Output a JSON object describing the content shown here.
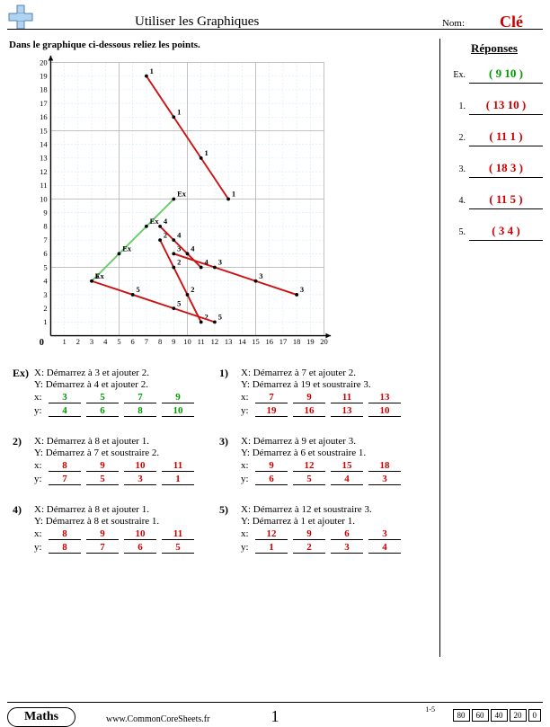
{
  "header": {
    "title": "Utiliser les Graphiques",
    "name_label": "Nom:",
    "key": "Clé"
  },
  "instruction": "Dans le graphique ci-dessous reliez les points.",
  "chart": {
    "type": "line",
    "xlim": [
      0,
      20
    ],
    "ylim": [
      0,
      20
    ],
    "xtick_step": 1,
    "ytick_step": 1,
    "xtick_label_step": 1,
    "ytick_label_step": 1,
    "grid_minor_color": "#cfe6f5",
    "grid_major_color": "#b0b0b0",
    "grid_major_step": 5,
    "axis_color": "#000000",
    "background": "#ffffff",
    "label_fontsize": 9,
    "point_label_fontsize": 9,
    "line_width": 2,
    "series": [
      {
        "name": "Ex",
        "color": "#66cc66",
        "label": "Ex",
        "points": [
          [
            3,
            4
          ],
          [
            5,
            6
          ],
          [
            7,
            8
          ],
          [
            9,
            10
          ]
        ]
      },
      {
        "name": "1",
        "color": "#cc1111",
        "label": "1",
        "points": [
          [
            7,
            19
          ],
          [
            9,
            16
          ],
          [
            11,
            13
          ],
          [
            13,
            10
          ]
        ]
      },
      {
        "name": "2",
        "color": "#cc1111",
        "label": "2",
        "points": [
          [
            8,
            7
          ],
          [
            9,
            5
          ],
          [
            10,
            3
          ],
          [
            11,
            1
          ]
        ]
      },
      {
        "name": "3",
        "color": "#cc1111",
        "label": "3",
        "points": [
          [
            9,
            6
          ],
          [
            12,
            5
          ],
          [
            15,
            4
          ],
          [
            18,
            3
          ]
        ]
      },
      {
        "name": "4",
        "color": "#cc1111",
        "label": "4",
        "points": [
          [
            8,
            8
          ],
          [
            9,
            7
          ],
          [
            10,
            6
          ],
          [
            11,
            5
          ]
        ]
      },
      {
        "name": "5",
        "color": "#cc1111",
        "label": "5",
        "points": [
          [
            12,
            1
          ],
          [
            9,
            2
          ],
          [
            6,
            3
          ],
          [
            3,
            4
          ]
        ]
      }
    ]
  },
  "problems": [
    {
      "num": "Ex)",
      "green": true,
      "xrule": "X: Démarrez à 3 et ajouter 2.",
      "yrule": "Y: Démarrez à 4 et ajouter 2.",
      "x": [
        3,
        5,
        7,
        9
      ],
      "y": [
        4,
        6,
        8,
        10
      ]
    },
    {
      "num": "1)",
      "xrule": "X: Démarrez à 7 et ajouter 2.",
      "yrule": "Y: Démarrez à 19 et soustraire 3.",
      "x": [
        7,
        9,
        11,
        13
      ],
      "y": [
        19,
        16,
        13,
        10
      ]
    },
    {
      "num": "2)",
      "xrule": "X: Démarrez à 8 et ajouter 1.",
      "yrule": "Y: Démarrez à 7 et soustraire 2.",
      "x": [
        8,
        9,
        10,
        11
      ],
      "y": [
        7,
        5,
        3,
        1
      ]
    },
    {
      "num": "3)",
      "xrule": "X: Démarrez à 9 et ajouter 3.",
      "yrule": "Y: Démarrez à 6 et soustraire 1.",
      "x": [
        9,
        12,
        15,
        18
      ],
      "y": [
        6,
        5,
        4,
        3
      ]
    },
    {
      "num": "4)",
      "xrule": "X: Démarrez à 8 et ajouter 1.",
      "yrule": "Y: Démarrez à 8 et soustraire 1.",
      "x": [
        8,
        9,
        10,
        11
      ],
      "y": [
        8,
        7,
        6,
        5
      ]
    },
    {
      "num": "5)",
      "xrule": "X: Démarrez à 12 et soustraire 3.",
      "yrule": "Y: Démarrez à 1 et ajouter 1.",
      "x": [
        12,
        9,
        6,
        3
      ],
      "y": [
        1,
        2,
        3,
        4
      ]
    }
  ],
  "answers": {
    "title": "Réponses",
    "items": [
      {
        "label": "Ex.",
        "value": "( 9 10 )",
        "color": "green"
      },
      {
        "label": "1.",
        "value": "( 13 10 )",
        "color": "red"
      },
      {
        "label": "2.",
        "value": "( 11 1 )",
        "color": "red"
      },
      {
        "label": "3.",
        "value": "( 18 3 )",
        "color": "red"
      },
      {
        "label": "4.",
        "value": "( 11 5 )",
        "color": "red"
      },
      {
        "label": "5.",
        "value": "( 3 4 )",
        "color": "red"
      }
    ]
  },
  "footer": {
    "subject": "Maths",
    "url": "www.CommonCoreSheets.fr",
    "page": "1",
    "score_label": "1-5",
    "scores": [
      80,
      60,
      40,
      20,
      0
    ]
  }
}
